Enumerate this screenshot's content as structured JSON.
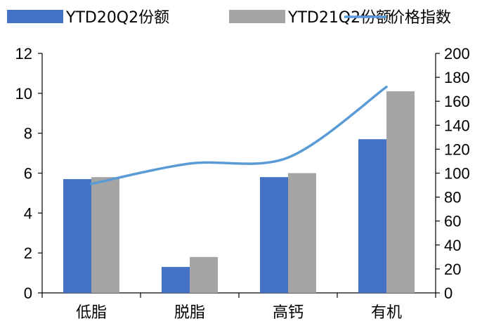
{
  "chart_data": {
    "type": "bar",
    "title": "",
    "xlabel": "",
    "ylabel": "",
    "categories": [
      "低脂",
      "脱脂",
      "高钙",
      "有机"
    ],
    "series": [
      {
        "name": "YTD20Q2份额",
        "kind": "bar",
        "axis": "left",
        "color": "#4472c4",
        "values": [
          5.7,
          1.3,
          5.8,
          7.7
        ]
      },
      {
        "name": "YTD21Q2份额",
        "kind": "bar",
        "axis": "left",
        "color": "#a5a5a5",
        "values": [
          5.8,
          1.8,
          6.0,
          10.1
        ]
      },
      {
        "name": "价格指数",
        "kind": "line",
        "axis": "right",
        "color": "#5b9bd5",
        "values": [
          91,
          108,
          113,
          172
        ]
      }
    ],
    "ylim": [
      0,
      12
    ],
    "yticks": [
      0,
      2,
      4,
      6,
      8,
      10,
      12
    ],
    "y2lim": [
      0,
      200
    ],
    "y2ticks": [
      0,
      20,
      40,
      60,
      80,
      100,
      120,
      140,
      160,
      180,
      200
    ],
    "legend_position": "top",
    "grid": false
  }
}
